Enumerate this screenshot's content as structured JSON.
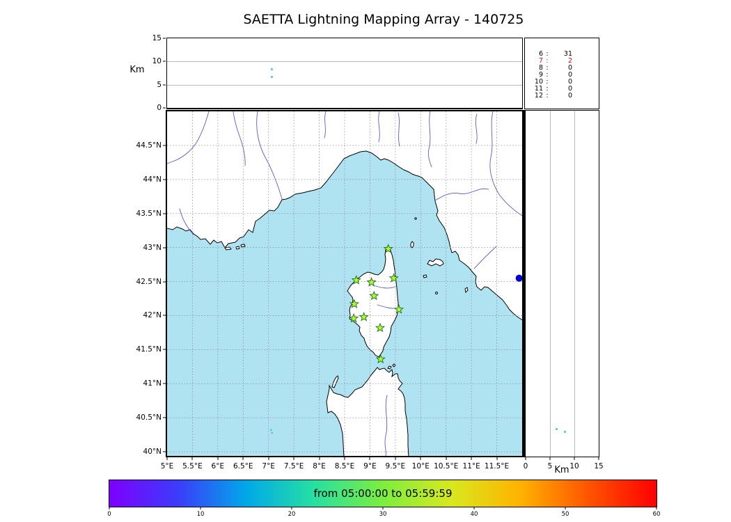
{
  "chart_data": {
    "type": "scatter",
    "title": "SAETTA Lightning Mapping Array - 140725",
    "map": {
      "lon_range": [
        5,
        12
      ],
      "lat_range": [
        39.94,
        45.0
      ],
      "lon_ticks": [
        {
          "v": 5,
          "label": "5°E"
        },
        {
          "v": 5.5,
          "label": "5.5°E"
        },
        {
          "v": 6,
          "label": "6°E"
        },
        {
          "v": 6.5,
          "label": "6.5°E"
        },
        {
          "v": 7,
          "label": "7°E"
        },
        {
          "v": 7.5,
          "label": "7.5°E"
        },
        {
          "v": 8,
          "label": "8°E"
        },
        {
          "v": 8.5,
          "label": "8.5°E"
        },
        {
          "v": 9,
          "label": "9°E"
        },
        {
          "v": 9.5,
          "label": "9.5°E"
        },
        {
          "v": 10,
          "label": "10°E"
        },
        {
          "v": 10.5,
          "label": "10.5°E"
        },
        {
          "v": 11,
          "label": "11°E"
        },
        {
          "v": 11.5,
          "label": "11.5°E"
        }
      ],
      "lat_ticks": [
        {
          "v": 44.5,
          "label": "44.5°N"
        },
        {
          "v": 44,
          "label": "44°N"
        },
        {
          "v": 43.5,
          "label": "43.5°N"
        },
        {
          "v": 43,
          "label": "43°N"
        },
        {
          "v": 42.5,
          "label": "42.5°N"
        },
        {
          "v": 42,
          "label": "42°N"
        },
        {
          "v": 41.5,
          "label": "41.5°N"
        },
        {
          "v": 41,
          "label": "41°N"
        },
        {
          "v": 40.5,
          "label": "40.5°N"
        },
        {
          "v": 40,
          "label": "40°N"
        }
      ],
      "stations": [
        [
          9.36,
          42.98
        ],
        [
          8.73,
          42.52
        ],
        [
          9.03,
          42.49
        ],
        [
          9.47,
          42.55
        ],
        [
          9.08,
          42.29
        ],
        [
          8.69,
          42.17
        ],
        [
          9.57,
          42.09
        ],
        [
          8.68,
          41.96
        ],
        [
          8.88,
          41.98
        ],
        [
          9.2,
          41.82
        ],
        [
          9.21,
          41.36
        ]
      ],
      "lake": {
        "lon": 11.94,
        "lat": 42.55
      },
      "lightning_points": [
        [
          7.05,
          40.32
        ],
        [
          7.07,
          40.28
        ]
      ]
    },
    "alt_axis": {
      "label": "Km",
      "range": [
        0,
        15
      ],
      "ticks": [
        {
          "v": 0,
          "label": "0"
        },
        {
          "v": 5,
          "label": "5"
        },
        {
          "v": 10,
          "label": "10"
        },
        {
          "v": 15,
          "label": "15"
        }
      ]
    },
    "top_panel_points": [
      {
        "lon": 7.06,
        "alt": 8.4
      },
      {
        "lon": 7.06,
        "alt": 6.7
      }
    ],
    "right_panel_points": [
      {
        "alt": 6.4,
        "lat": 40.32
      },
      {
        "alt": 8.1,
        "lat": 40.28
      }
    ],
    "station_counts": {
      "rows": [
        {
          "id": "6",
          "count": "31",
          "highlight": false
        },
        {
          "id": "7",
          "count": "2",
          "highlight": true
        },
        {
          "id": "8",
          "count": "0",
          "highlight": false
        },
        {
          "id": "9",
          "count": "0",
          "highlight": false
        },
        {
          "id": "10",
          "count": "0",
          "highlight": false
        },
        {
          "id": "11",
          "count": "0",
          "highlight": false
        },
        {
          "id": "12",
          "count": "0",
          "highlight": false
        }
      ]
    },
    "colorbar": {
      "label": "from 05:00:00 to 05:59:59",
      "range": [
        0,
        60
      ],
      "ticks": [
        {
          "v": 0,
          "label": "0"
        },
        {
          "v": 10,
          "label": "10"
        },
        {
          "v": 20,
          "label": "20"
        },
        {
          "v": 30,
          "label": "30"
        },
        {
          "v": 40,
          "label": "40"
        },
        {
          "v": 50,
          "label": "50"
        },
        {
          "v": 60,
          "label": "60"
        }
      ],
      "gradient": [
        "#7f00ff",
        "#3b3cfa",
        "#00a8e8",
        "#27e0a1",
        "#7cee3e",
        "#d8e81f",
        "#ffb300",
        "#ff5500",
        "#ff0000"
      ]
    },
    "colors": {
      "sea": "#b0e3f2",
      "land": "#ffffff",
      "coastline": "#000000",
      "river": "#5a5ad0",
      "grid": "#8a8a8a",
      "station_fill": "#adff2f",
      "station_edge": "#1f6b1f",
      "lake": "#0000cc",
      "point": "#35c8e8",
      "highlight": "#ff0000"
    }
  }
}
